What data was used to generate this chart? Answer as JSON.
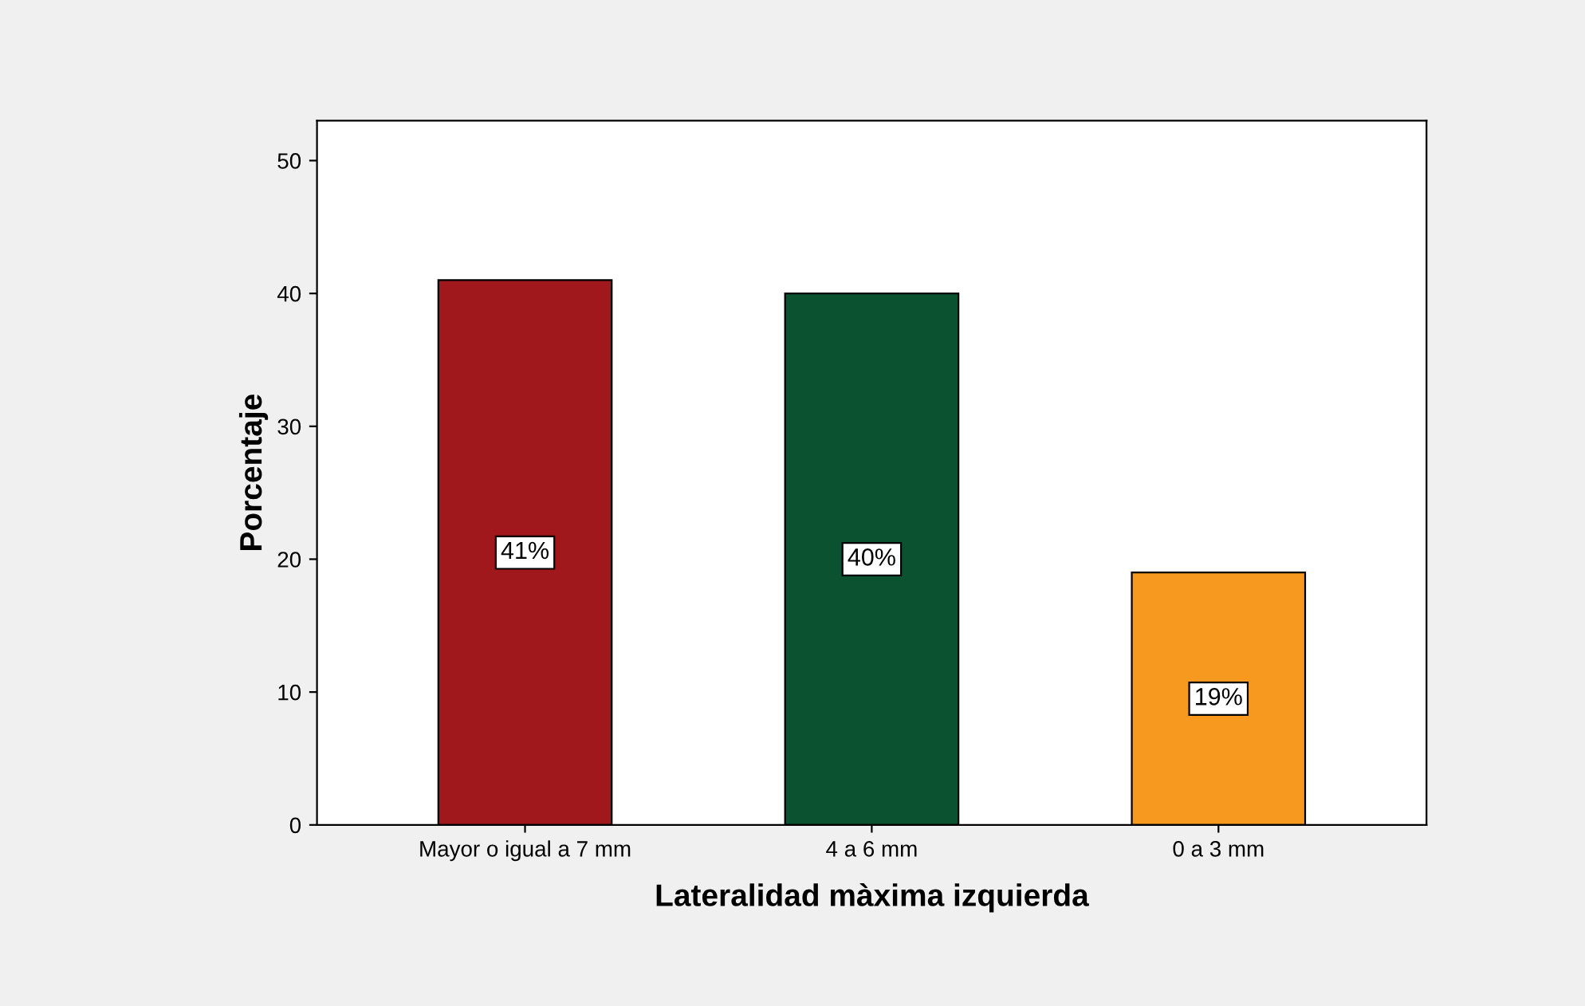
{
  "chart_data": {
    "type": "bar",
    "xlabel": "Lateralidad màxima izquierda",
    "ylabel": "Porcentaje",
    "categories": [
      "Mayor o igual a 7 mm",
      "4 a 6 mm",
      "0 a 3 mm"
    ],
    "values": [
      41,
      40,
      19
    ],
    "colors": [
      "#a0181c",
      "#0b5230",
      "#f7981f"
    ],
    "value_labels": [
      "41%",
      "40%",
      "19%"
    ],
    "ylim": [
      0,
      53
    ],
    "yticks": [
      0,
      10,
      20,
      30,
      40,
      50
    ],
    "grid": false,
    "legend": false
  }
}
